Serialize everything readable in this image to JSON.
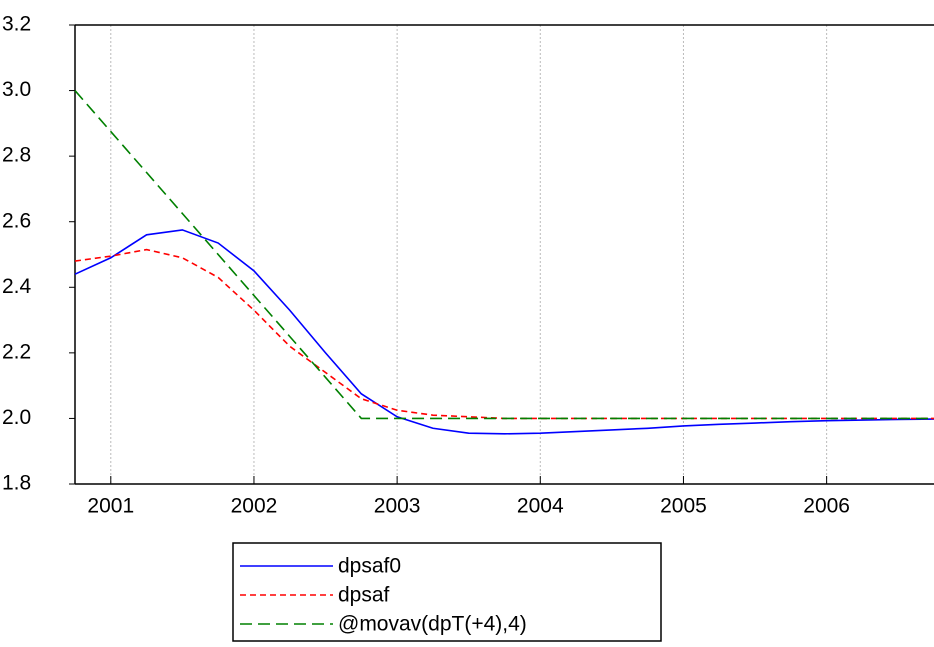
{
  "chart_data": {
    "type": "line",
    "x": [
      2000.75,
      2001,
      2001.25,
      2001.5,
      2001.75,
      2002,
      2002.25,
      2002.5,
      2002.75,
      2003,
      2003.25,
      2003.5,
      2003.75,
      2004,
      2004.25,
      2004.5,
      2004.75,
      2005,
      2005.25,
      2005.5,
      2005.75,
      2006,
      2006.25,
      2006.5,
      2006.75
    ],
    "series": [
      {
        "name": "dpsaf0",
        "color": "#0000ff",
        "dash": "none",
        "values": [
          2.44,
          2.49,
          2.56,
          2.575,
          2.535,
          2.45,
          2.33,
          2.2,
          2.075,
          2.005,
          1.97,
          1.955,
          1.953,
          1.955,
          1.96,
          1.965,
          1.97,
          1.977,
          1.982,
          1.986,
          1.99,
          1.993,
          1.995,
          1.997,
          1.998
        ]
      },
      {
        "name": "dpsaf",
        "color": "#ff0000",
        "dash": "6,4",
        "values": [
          2.48,
          2.495,
          2.515,
          2.49,
          2.43,
          2.33,
          2.22,
          2.14,
          2.06,
          2.025,
          2.01,
          2.005,
          2.0,
          2.0,
          2.0,
          2.0,
          2.0,
          2.0,
          2.0,
          2.0,
          2.0,
          2.0,
          2.0,
          2.0,
          2.0
        ]
      },
      {
        "name": "@movav(dpT(+4),4)",
        "color": "#008000",
        "dash": "12,6",
        "values": [
          3.0,
          2.875,
          2.75,
          2.625,
          2.5,
          2.375,
          2.25,
          2.125,
          2.0,
          2.0,
          2.0,
          2.0,
          2.0,
          2.0,
          2.0,
          2.0,
          2.0,
          2.0,
          2.0,
          2.0,
          2.0,
          2.0,
          2.0,
          2.0,
          2.0
        ]
      }
    ],
    "xlim": [
      2000.75,
      2006.75
    ],
    "xticks": [
      2001,
      2002,
      2003,
      2004,
      2005,
      2006
    ],
    "ylim": [
      1.8,
      3.2
    ],
    "yticks": [
      1.8,
      {
        "value": 2,
        "label": "2.0"
      },
      2.2,
      2.4,
      2.6,
      2.8,
      {
        "value": 3,
        "label": "3.0"
      },
      3.2
    ],
    "grid": true
  }
}
